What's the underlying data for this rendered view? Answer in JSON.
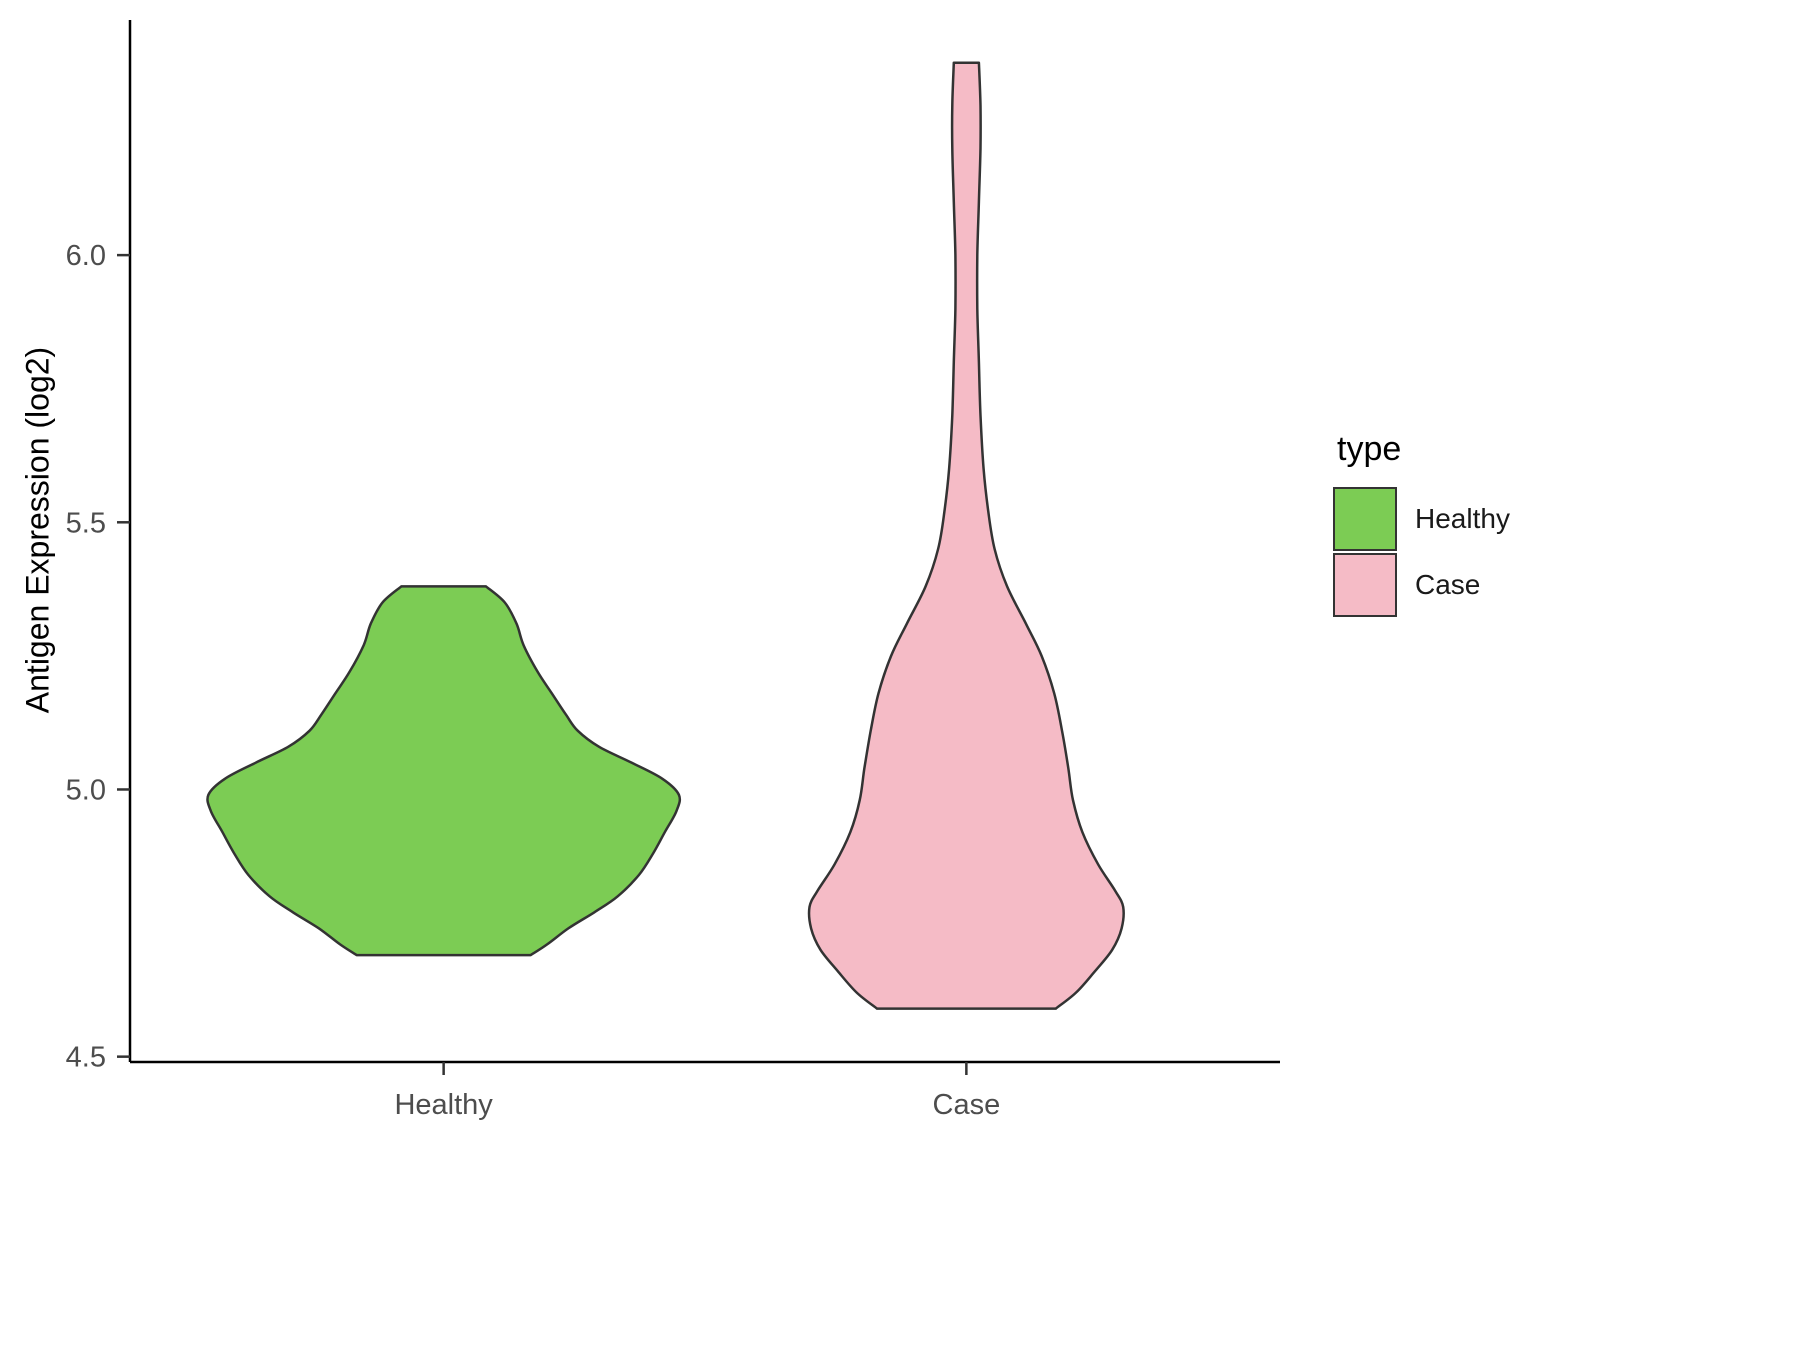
{
  "figure": {
    "background": "#FFFFFF"
  },
  "chart_data": {
    "type": "violin",
    "title": "",
    "xlabel": "",
    "ylabel": "Antigen Expression (log2)",
    "categories": [
      "Healthy",
      "Case"
    ],
    "yaxis": {
      "ticks": [
        4.5,
        5.0,
        5.5,
        6.0
      ],
      "tick_labels": [
        "4.5",
        "5.0",
        "5.5",
        "6.0"
      ],
      "limits": [
        4.49,
        6.44
      ]
    },
    "xaxis": {
      "limits": [
        0.4,
        2.6
      ],
      "positions": [
        1,
        2
      ]
    },
    "grid": "off",
    "series": [
      {
        "name": "Healthy",
        "fill": "#7CCC54",
        "outline": "#333333",
        "max_halfwidth": 0.45,
        "value_range": [
          4.69,
          5.38
        ],
        "profile": [
          [
            5.38,
            0.18
          ],
          [
            5.35,
            0.26
          ],
          [
            5.31,
            0.31
          ],
          [
            5.27,
            0.34
          ],
          [
            5.22,
            0.4
          ],
          [
            5.18,
            0.46
          ],
          [
            5.14,
            0.52
          ],
          [
            5.11,
            0.57
          ],
          [
            5.08,
            0.66
          ],
          [
            5.05,
            0.8
          ],
          [
            5.02,
            0.93
          ],
          [
            4.99,
            1.0
          ],
          [
            4.96,
            0.99
          ],
          [
            4.92,
            0.94
          ],
          [
            4.88,
            0.89
          ],
          [
            4.84,
            0.83
          ],
          [
            4.8,
            0.74
          ],
          [
            4.77,
            0.64
          ],
          [
            4.74,
            0.53
          ],
          [
            4.71,
            0.44
          ],
          [
            4.69,
            0.37
          ]
        ]
      },
      {
        "name": "Case",
        "fill": "#F5BBC6",
        "outline": "#333333",
        "max_halfwidth": 0.3,
        "value_range": [
          4.59,
          6.36
        ],
        "profile": [
          [
            6.36,
            0.08
          ],
          [
            6.28,
            0.09
          ],
          [
            6.2,
            0.09
          ],
          [
            6.1,
            0.08
          ],
          [
            6.0,
            0.07
          ],
          [
            5.9,
            0.07
          ],
          [
            5.8,
            0.08
          ],
          [
            5.7,
            0.09
          ],
          [
            5.6,
            0.11
          ],
          [
            5.52,
            0.14
          ],
          [
            5.45,
            0.18
          ],
          [
            5.38,
            0.26
          ],
          [
            5.31,
            0.38
          ],
          [
            5.25,
            0.48
          ],
          [
            5.18,
            0.56
          ],
          [
            5.11,
            0.61
          ],
          [
            5.04,
            0.65
          ],
          [
            4.98,
            0.68
          ],
          [
            4.92,
            0.74
          ],
          [
            4.86,
            0.84
          ],
          [
            4.81,
            0.95
          ],
          [
            4.78,
            1.0
          ],
          [
            4.74,
            0.99
          ],
          [
            4.7,
            0.93
          ],
          [
            4.66,
            0.82
          ],
          [
            4.62,
            0.7
          ],
          [
            4.59,
            0.57
          ]
        ]
      }
    ],
    "legend": {
      "title": "type",
      "position": "right",
      "entries": [
        {
          "label": "Healthy",
          "color": "#7CCC54"
        },
        {
          "label": "Case",
          "color": "#F5BBC6"
        }
      ]
    },
    "style": {
      "axis_color": "#000000",
      "tick_color": "#333333",
      "tick_label_color": "#4D4D4D"
    }
  }
}
